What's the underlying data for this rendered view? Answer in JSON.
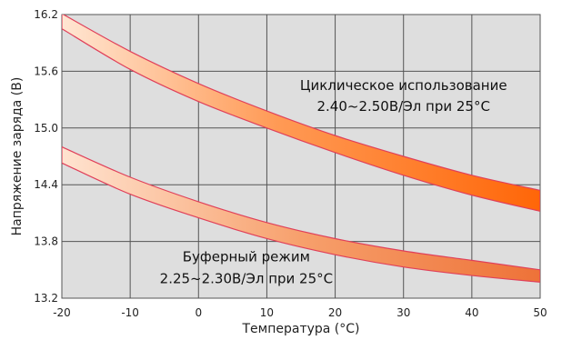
{
  "chart_data": {
    "type": "area",
    "xlabel": "Температура (°С)",
    "ylabel": "Напряжение заряда (В)",
    "xlim": [
      -20,
      50
    ],
    "ylim": [
      13.2,
      16.2
    ],
    "x_ticks": [
      "-20",
      "-10",
      "0",
      "10",
      "20",
      "30",
      "40",
      "50"
    ],
    "y_ticks": [
      "13.2",
      "13.8",
      "14.4",
      "15.0",
      "15.6",
      "16.2"
    ],
    "grid": true,
    "series": [
      {
        "name": "Циклическое использование",
        "color": "#ff6a10",
        "x": [
          -20,
          -10,
          0,
          10,
          20,
          30,
          40,
          50
        ],
        "upper": [
          16.21,
          15.81,
          15.47,
          15.18,
          14.92,
          14.7,
          14.5,
          14.34
        ],
        "lower": [
          16.05,
          15.62,
          15.28,
          15.0,
          14.74,
          14.5,
          14.29,
          14.12
        ]
      },
      {
        "name": "Буферный режим",
        "color": "#f07030",
        "x": [
          -20,
          -10,
          0,
          10,
          20,
          30,
          40,
          50
        ],
        "upper": [
          14.8,
          14.48,
          14.22,
          14.0,
          13.83,
          13.7,
          13.6,
          13.5
        ],
        "lower": [
          14.63,
          14.3,
          14.05,
          13.83,
          13.66,
          13.53,
          13.44,
          13.37
        ]
      }
    ],
    "annotations": [
      {
        "line1": "Циклическое использование",
        "line2": "2.40~2.50В/Эл  при 25°С",
        "x": 30,
        "y1": 15.4,
        "y2": 15.18
      },
      {
        "line1": "Буферный режим",
        "line2": "2.25~2.30В/Эл  при 25°С",
        "x": 7,
        "y1": 13.59,
        "y2": 13.36
      }
    ]
  }
}
